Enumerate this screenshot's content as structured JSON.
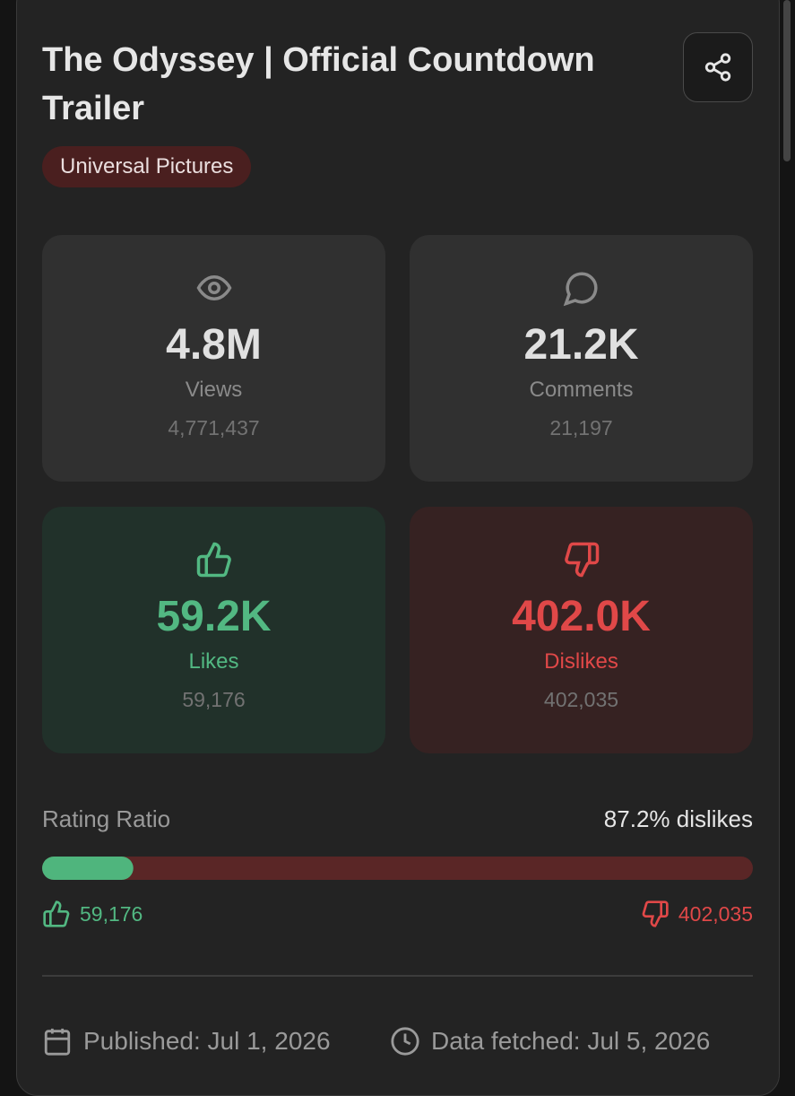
{
  "header": {
    "title": "The Odyssey | Official Countdown Trailer",
    "channel": "Universal Pictures"
  },
  "stats": {
    "views": {
      "display": "4.8M",
      "label": "Views",
      "exact": {
        "value": 4771437,
        "label": "4,771,437"
      }
    },
    "comments": {
      "display": "21.2K",
      "label": "Comments",
      "exact": {
        "value": 21197,
        "label": "21,197"
      }
    },
    "likes": {
      "display": "59.2K",
      "label": "Likes",
      "exact": {
        "value": 59176,
        "label": "59,176"
      }
    },
    "dislikes": {
      "display": "402.0K",
      "label": "Dislikes",
      "exact": {
        "value": 402035,
        "label": "402,035"
      }
    }
  },
  "rating": {
    "label": "Rating Ratio",
    "summary": "87.2% dislikes"
  },
  "footer": {
    "published": "Published: Jul 1, 2026",
    "fetched": "Data fetched: Jul 5, 2026"
  }
}
